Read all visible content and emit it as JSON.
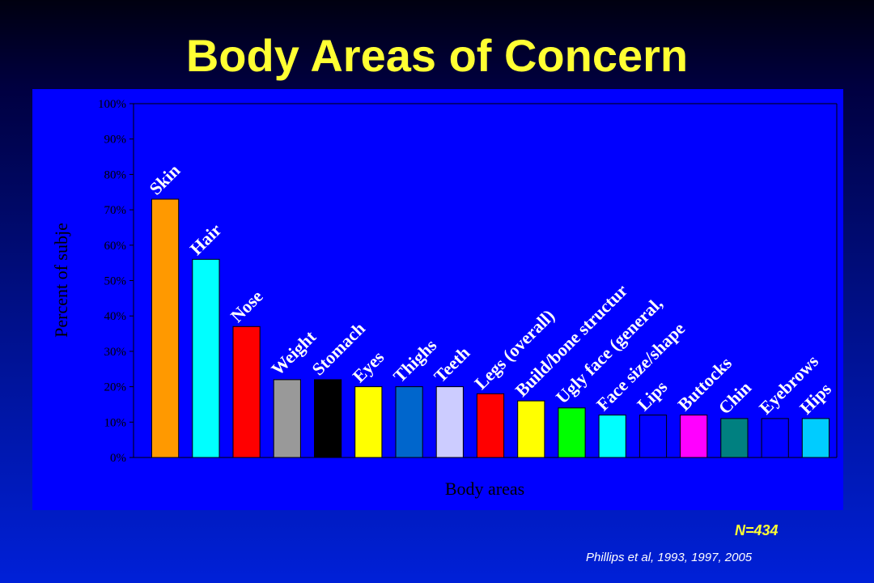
{
  "slide": {
    "title": "Body Areas of Concern",
    "sample_size": "N=434",
    "citation": "Phillips et al, 1993, 1997, 2005"
  },
  "chart_data": {
    "type": "bar",
    "title": "",
    "xlabel": "Body areas",
    "ylabel": "Percent of subje",
    "ylim": [
      0,
      100
    ],
    "y_ticks": [
      "0%",
      "10%",
      "20%",
      "30%",
      "40%",
      "50%",
      "60%",
      "70%",
      "80%",
      "90%",
      "100%"
    ],
    "grid": false,
    "categories": [
      "Skin",
      "Hair",
      "Nose",
      "Weight",
      "Stomach",
      "Eyes",
      "Thighs",
      "Teeth",
      "Legs (overall)",
      "Build/bone structur",
      "Ugly face (general,",
      "Face size/shape",
      "Lips",
      "Buttocks",
      "Chin",
      "Eyebrows",
      "Hips"
    ],
    "values": [
      73,
      56,
      37,
      22,
      22,
      20,
      20,
      20,
      18,
      16,
      14,
      12,
      12,
      12,
      11,
      11,
      11
    ],
    "colors": [
      "#ff9900",
      "#00ffff",
      "#ff0000",
      "#999999",
      "#000000",
      "#ffff00",
      "#0066cc",
      "#ccccff",
      "#ff0000",
      "#ffff00",
      "#00ff00",
      "#00ffff",
      "#0000ff",
      "#ff00ff",
      "#008080",
      "#0000ff",
      "#00ccff"
    ],
    "colors_meta": {
      "plot_background": "#0000ff",
      "axis_text": "#000000",
      "bar_label_text": "#ffffff",
      "title_color": "#ffff33"
    }
  }
}
